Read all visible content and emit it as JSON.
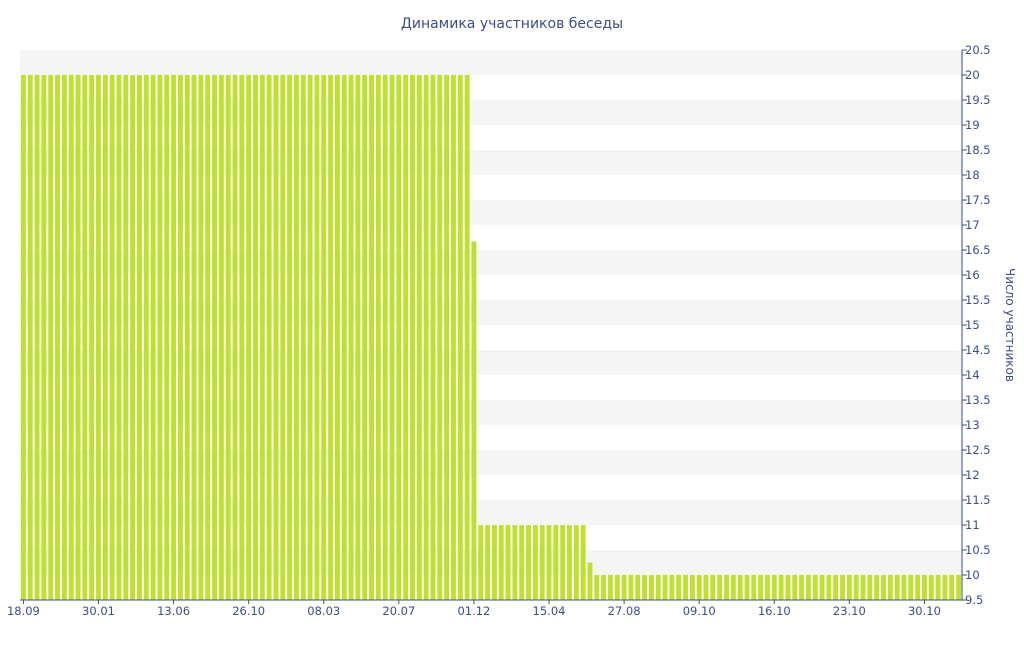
{
  "chart_data": {
    "type": "bar",
    "title": "Динамика участников беседы",
    "xlabel": "",
    "ylabel": "Число участников",
    "ylim": [
      9.5,
      20.5
    ],
    "y_ticks": [
      9.5,
      10,
      10.5,
      11,
      11.5,
      12,
      12.5,
      13,
      13.5,
      14,
      14.5,
      15,
      15.5,
      16,
      16.5,
      17,
      17.5,
      18,
      18.5,
      19,
      19.5,
      20,
      20.5
    ],
    "y_axis_side": "right",
    "x_tick_labels": [
      "18.09",
      "30.01",
      "13.06",
      "26.10",
      "08.03",
      "20.07",
      "01.12",
      "15.04",
      "27.08",
      "09.10",
      "16.10",
      "23.10",
      "30.10"
    ],
    "x_tick_indices": [
      0,
      11,
      22,
      33,
      44,
      55,
      66,
      77,
      88,
      99,
      110,
      121,
      132
    ],
    "values": [
      20,
      20,
      20,
      20,
      20,
      20,
      20,
      20,
      20,
      20,
      20,
      20,
      20,
      20,
      20,
      20,
      20,
      20,
      20,
      20,
      20,
      20,
      20,
      20,
      20,
      20,
      20,
      20,
      20,
      20,
      20,
      20,
      20,
      20,
      20,
      20,
      20,
      20,
      20,
      20,
      20,
      20,
      20,
      20,
      20,
      20,
      20,
      20,
      20,
      20,
      20,
      20,
      20,
      20,
      20,
      20,
      20,
      20,
      20,
      20,
      20,
      20,
      20,
      20,
      20,
      20,
      16.67,
      11,
      11,
      11,
      11,
      11,
      11,
      11,
      11,
      11,
      11,
      11,
      11,
      11,
      11,
      11,
      11,
      10.25,
      10,
      10,
      10,
      10,
      10,
      10,
      10,
      10,
      10,
      10,
      10,
      10,
      10,
      10,
      10,
      10,
      10,
      10,
      10,
      10,
      10,
      10,
      10,
      10,
      10,
      10,
      10,
      10,
      10,
      10,
      10,
      10,
      10,
      10,
      10,
      10,
      10,
      10,
      10,
      10,
      10,
      10,
      10,
      10,
      10,
      10,
      10,
      10,
      10,
      10,
      10,
      10,
      10,
      10
    ],
    "bar_color": "#c0e030",
    "grid": "horizontal bands"
  }
}
